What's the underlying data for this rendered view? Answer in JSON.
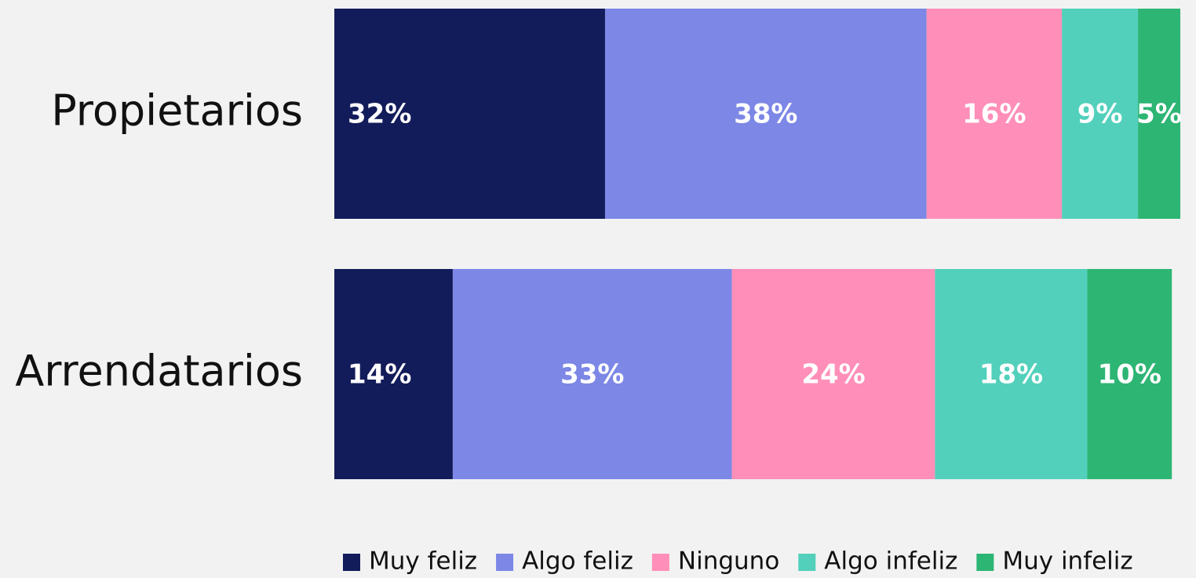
{
  "chart_data": {
    "type": "stacked-barh",
    "categories": [
      "Propietarios",
      "Arrendatarios"
    ],
    "xlim": [
      0,
      100
    ],
    "legend": "bottom",
    "series": [
      {
        "name": "Muy feliz",
        "color": "#131c5a",
        "values": [
          32,
          14
        ],
        "value_labels": [
          "32%",
          "14%"
        ]
      },
      {
        "name": "Algo feliz",
        "color": "#7c87e6",
        "values": [
          38,
          33
        ],
        "value_labels": [
          "38%",
          "33%"
        ]
      },
      {
        "name": "Ninguno",
        "color": "#ff8fb8",
        "values": [
          16,
          24
        ],
        "value_labels": [
          "16%",
          "24%"
        ]
      },
      {
        "name": "Algo infeliz",
        "color": "#52d0bb",
        "values": [
          9,
          18
        ],
        "value_labels": [
          "9%",
          "18%"
        ]
      },
      {
        "name": "Muy infeliz",
        "color": "#2db574",
        "values": [
          5,
          10
        ],
        "value_labels": [
          "5%",
          "10%"
        ]
      }
    ]
  }
}
